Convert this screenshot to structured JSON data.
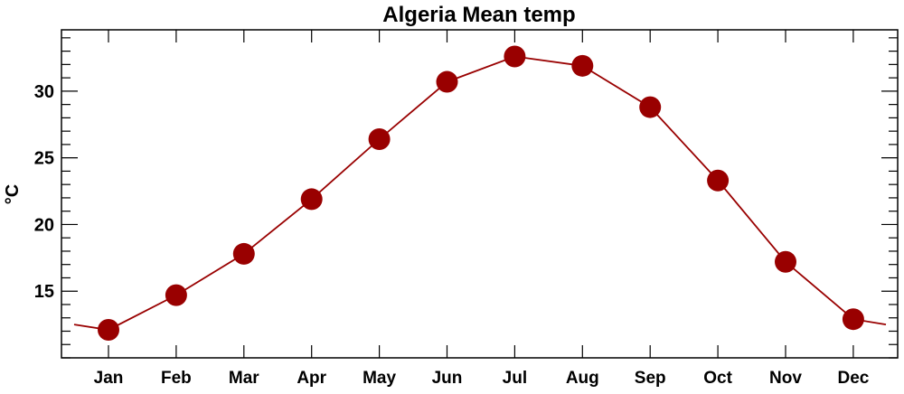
{
  "chart_data": {
    "type": "line",
    "title": "Algeria Mean temp",
    "xlabel": "",
    "ylabel": "°C",
    "categories": [
      "Jan",
      "Feb",
      "Mar",
      "Apr",
      "May",
      "Jun",
      "Jul",
      "Aug",
      "Sep",
      "Oct",
      "Nov",
      "Dec"
    ],
    "series": [
      {
        "name": "Mean temp",
        "values": [
          12.1,
          14.7,
          17.8,
          21.9,
          26.4,
          30.7,
          32.6,
          31.9,
          28.8,
          23.3,
          17.2,
          12.9
        ]
      }
    ],
    "wrap_value": 12.5,
    "ylim": [
      10.0,
      34.6
    ],
    "yticks": [
      15,
      20,
      25,
      30
    ],
    "yminor_step": 1,
    "grid": false,
    "colors": {
      "series": "#990000",
      "axis": "#000000"
    }
  }
}
